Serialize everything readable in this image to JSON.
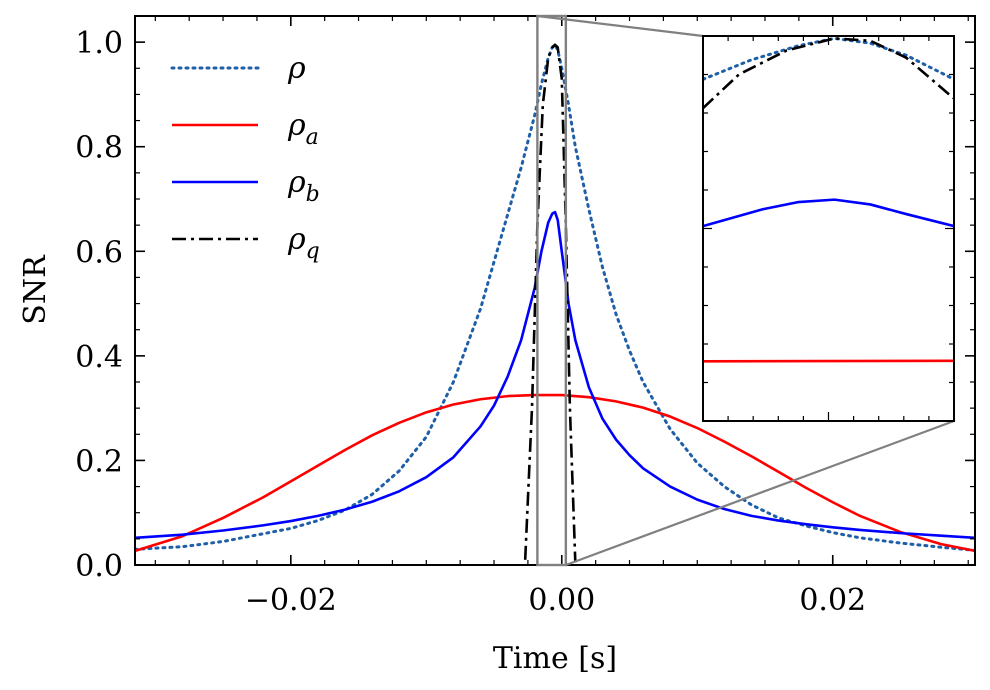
{
  "chart_data": {
    "type": "line",
    "title": "",
    "xlabel": "Time [s]",
    "ylabel": "SNR",
    "xlim": [
      -0.0315,
      0.0305
    ],
    "ylim": [
      0.0,
      1.05
    ],
    "xticks": [
      {
        "value": -0.02,
        "label": "−0.02"
      },
      {
        "value": 0.0,
        "label": "0.00"
      },
      {
        "value": 0.02,
        "label": "0.02"
      }
    ],
    "yticks": [
      {
        "value": 0.0,
        "label": "0.0"
      },
      {
        "value": 0.2,
        "label": "0.2"
      },
      {
        "value": 0.4,
        "label": "0.4"
      },
      {
        "value": 0.6,
        "label": "0.6"
      },
      {
        "value": 0.8,
        "label": "0.8"
      },
      {
        "value": 1.0,
        "label": "1.0"
      }
    ],
    "legend": {
      "placement": "upper-left",
      "entries": [
        {
          "symbol": "ρ",
          "subscript": ""
        },
        {
          "symbol": "ρ",
          "subscript": "a"
        },
        {
          "symbol": "ρ",
          "subscript": "b"
        },
        {
          "symbol": "ρ",
          "subscript": "q"
        }
      ]
    },
    "series": [
      {
        "name": "ρ",
        "color": "#1f5fa8",
        "style": "dotted",
        "x": [
          -0.0315,
          -0.028,
          -0.025,
          -0.022,
          -0.02,
          -0.018,
          -0.016,
          -0.014,
          -0.012,
          -0.01,
          -0.008,
          -0.006,
          -0.005,
          -0.004,
          -0.003,
          -0.002,
          -0.0015,
          -0.001,
          -0.0007,
          -0.0005,
          -0.0003,
          0.0,
          0.0005,
          0.001,
          0.002,
          0.003,
          0.004,
          0.005,
          0.006,
          0.008,
          0.01,
          0.012,
          0.014,
          0.016,
          0.018,
          0.02,
          0.022,
          0.025,
          0.028,
          0.0305
        ],
        "y": [
          0.03,
          0.035,
          0.045,
          0.06,
          0.07,
          0.085,
          0.105,
          0.135,
          0.18,
          0.245,
          0.35,
          0.49,
          0.58,
          0.67,
          0.76,
          0.86,
          0.92,
          0.97,
          0.99,
          0.995,
          0.985,
          0.95,
          0.88,
          0.8,
          0.68,
          0.57,
          0.48,
          0.41,
          0.35,
          0.26,
          0.195,
          0.15,
          0.115,
          0.09,
          0.075,
          0.062,
          0.052,
          0.042,
          0.034,
          0.028
        ]
      },
      {
        "name": "ρ_a",
        "color": "#ff0000",
        "style": "solid",
        "x": [
          -0.0315,
          -0.028,
          -0.025,
          -0.022,
          -0.02,
          -0.018,
          -0.016,
          -0.014,
          -0.012,
          -0.01,
          -0.008,
          -0.006,
          -0.004,
          -0.002,
          0.0,
          0.002,
          0.004,
          0.006,
          0.008,
          0.01,
          0.012,
          0.014,
          0.016,
          0.018,
          0.02,
          0.022,
          0.025,
          0.028,
          0.0305
        ],
        "y": [
          0.027,
          0.055,
          0.09,
          0.13,
          0.16,
          0.19,
          0.22,
          0.248,
          0.272,
          0.292,
          0.307,
          0.317,
          0.323,
          0.325,
          0.325,
          0.321,
          0.313,
          0.301,
          0.284,
          0.262,
          0.236,
          0.208,
          0.178,
          0.148,
          0.12,
          0.094,
          0.063,
          0.04,
          0.027
        ]
      },
      {
        "name": "ρ_b",
        "color": "#0000ff",
        "style": "solid",
        "x": [
          -0.0315,
          -0.028,
          -0.025,
          -0.022,
          -0.02,
          -0.018,
          -0.016,
          -0.014,
          -0.012,
          -0.01,
          -0.008,
          -0.006,
          -0.005,
          -0.004,
          -0.003,
          -0.002,
          -0.0015,
          -0.001,
          -0.0007,
          -0.0005,
          -0.0003,
          0.0,
          0.0005,
          0.001,
          0.002,
          0.003,
          0.004,
          0.005,
          0.006,
          0.008,
          0.01,
          0.012,
          0.014,
          0.016,
          0.018,
          0.02,
          0.022,
          0.025,
          0.028,
          0.0305
        ],
        "y": [
          0.052,
          0.058,
          0.066,
          0.076,
          0.084,
          0.094,
          0.106,
          0.121,
          0.141,
          0.168,
          0.206,
          0.265,
          0.305,
          0.36,
          0.43,
          0.53,
          0.6,
          0.655,
          0.672,
          0.675,
          0.66,
          0.6,
          0.5,
          0.43,
          0.34,
          0.28,
          0.24,
          0.21,
          0.185,
          0.15,
          0.125,
          0.107,
          0.094,
          0.085,
          0.078,
          0.072,
          0.067,
          0.061,
          0.056,
          0.052
        ]
      },
      {
        "name": "ρ_q",
        "color": "#000000",
        "style": "dashdot",
        "x": [
          -0.0027,
          -0.0022,
          -0.0018,
          -0.0014,
          -0.001,
          -0.0007,
          -0.0005,
          -0.0003,
          0.0,
          0.0003,
          0.0006,
          0.001
        ],
        "y": [
          0.01,
          0.3,
          0.65,
          0.88,
          0.97,
          0.99,
          0.995,
          0.99,
          0.93,
          0.65,
          0.3,
          0.005
        ]
      }
    ],
    "inset": {
      "placement": "upper-right",
      "xlim": [
        -0.0018,
        0.0003
      ],
      "ylim": [
        0.2,
        1.0
      ]
    }
  }
}
